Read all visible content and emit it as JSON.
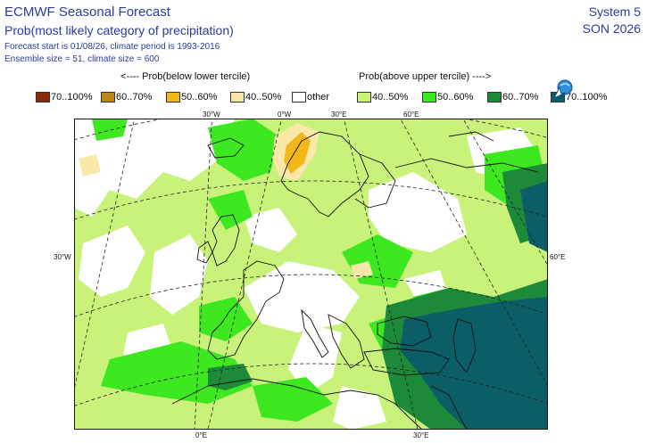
{
  "header": {
    "title": "ECMWF Seasonal Forecast",
    "subtitle": "Prob(most likely category of precipitation)",
    "info_line1": "Forecast start is 01/08/26, climate period is 1993-2016",
    "info_line2": "Ensemble size = 51, climate size = 600",
    "system": "System 5",
    "season": "SON 2026"
  },
  "legend": {
    "below_header": "<---- Prob(below lower tercile)",
    "above_header": "Prob(above upper tercile) ---->",
    "items": [
      {
        "label": "70..100%",
        "color": "#8b2a0a"
      },
      {
        "label": "60..70%",
        "color": "#b8861a"
      },
      {
        "label": "50..60%",
        "color": "#f2b81a"
      },
      {
        "label": "40..50%",
        "color": "#fae8a8"
      },
      {
        "label": "other",
        "color": "#ffffff"
      },
      {
        "label": "40..50%",
        "color": "#c8f27a"
      },
      {
        "label": "50..60%",
        "color": "#3ee820"
      },
      {
        "label": "60..70%",
        "color": "#1d8a3a"
      },
      {
        "label": "70..100%",
        "color": "#0b5e66"
      }
    ]
  },
  "map": {
    "lon_top": [
      "30°W",
      "0°W",
      "30°E",
      "60°E"
    ],
    "lon_bottom": [
      "0°E",
      "30°E"
    ],
    "lat_left": "30°W",
    "lat_right": "60°E"
  },
  "icons": {
    "cursor": "globe-pointer-icon"
  }
}
